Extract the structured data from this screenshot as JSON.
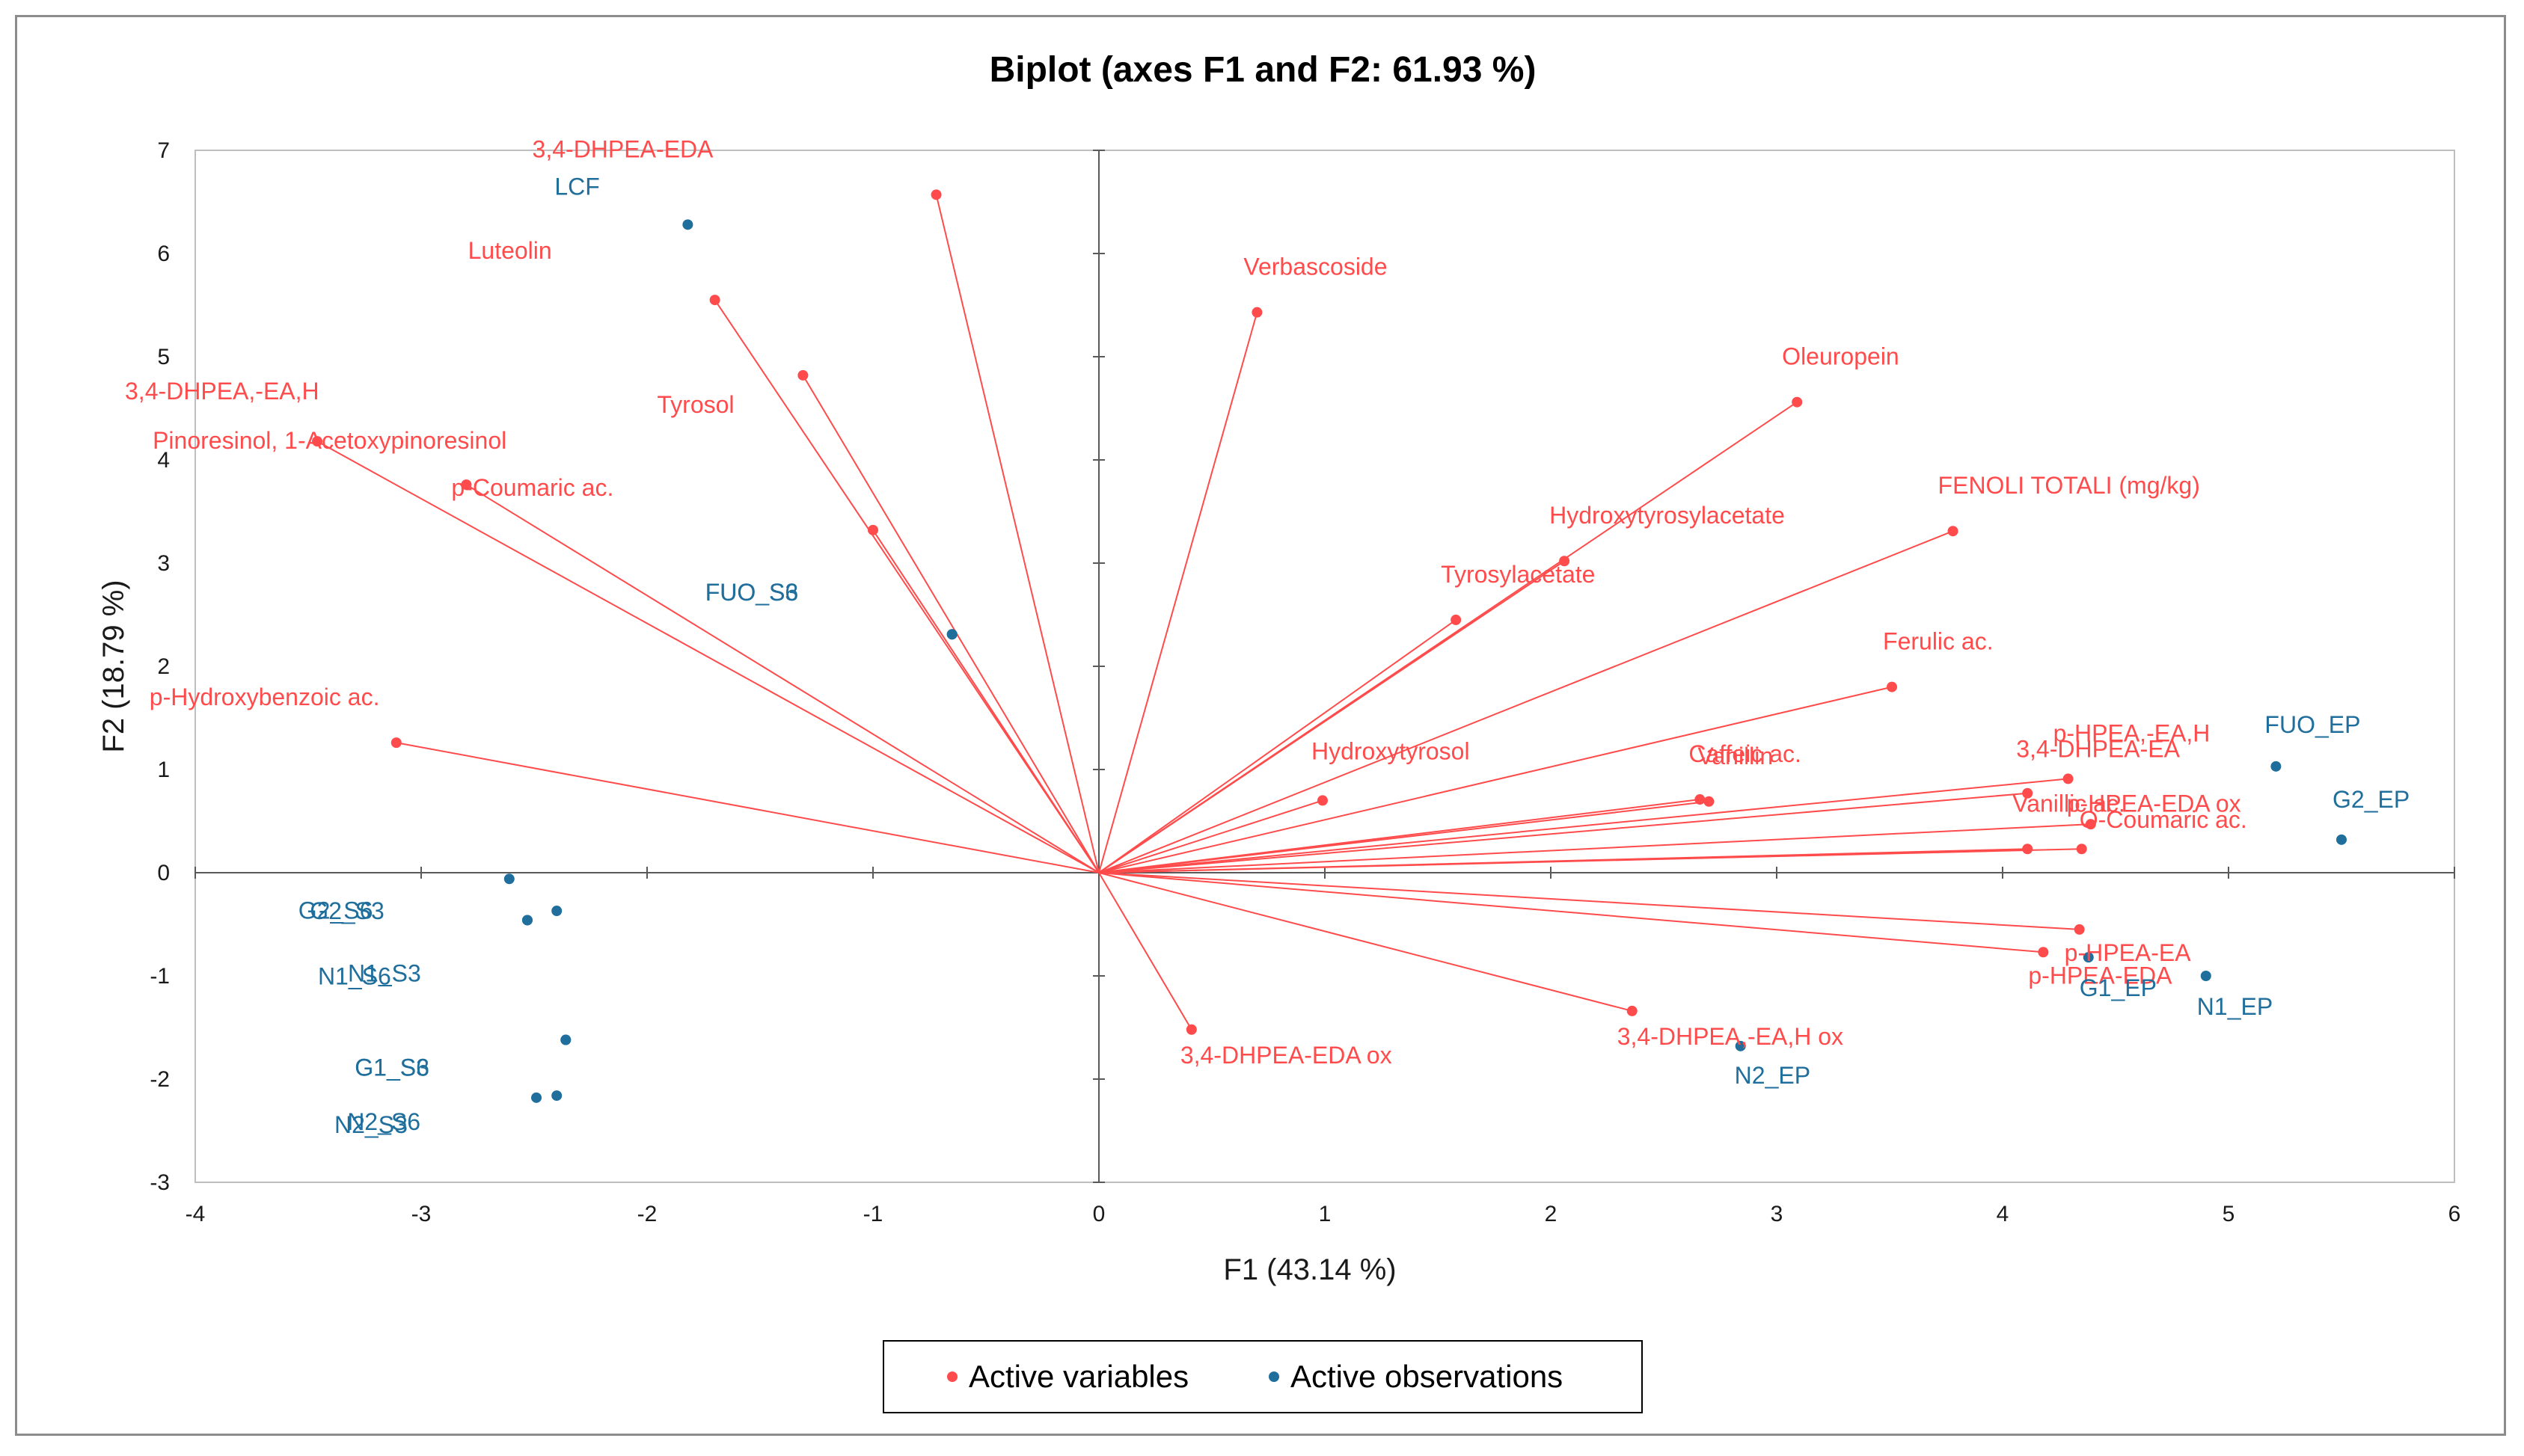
{
  "chart_data": {
    "type": "scatter",
    "subtype": "biplot",
    "title": "Biplot (axes F1 and F2: 61.93 %)",
    "xlabel": "F1 (43.14 %)",
    "ylabel": "F2 (18.79 %)",
    "xlim": [
      -4,
      6
    ],
    "ylim": [
      -3,
      7
    ],
    "xticks": [
      -4,
      -3,
      -2,
      -1,
      0,
      1,
      2,
      3,
      4,
      5,
      6
    ],
    "yticks": [
      -3,
      -2,
      -1,
      0,
      1,
      2,
      3,
      4,
      5,
      6,
      7
    ],
    "grid": false,
    "colors": {
      "variables": "#ff4b4b",
      "observations": "#1f6e9c",
      "axis": "#595959"
    },
    "legend": {
      "position": "bottom-center",
      "entries": [
        {
          "name": "Active variables",
          "color": "#ff4b4b"
        },
        {
          "name": "Active observations",
          "color": "#1f6e9c"
        }
      ]
    },
    "variables": [
      {
        "name": "3,4-DHPEA-EDA",
        "x": -0.72,
        "y": 6.57
      },
      {
        "name": "Luteolin",
        "x": -1.7,
        "y": 5.55
      },
      {
        "name": "Tyrosol",
        "x": -1.31,
        "y": 4.82
      },
      {
        "name": "3,4-DHPEA,-EA,H",
        "x": -1.0,
        "y": 3.32
      },
      {
        "name": "Pinoresinol, 1-Acetoxypinoresinol",
        "x": -3.46,
        "y": 4.18
      },
      {
        "name": "p-Coumaric ac.",
        "x": -2.8,
        "y": 3.76
      },
      {
        "name": "p-Hydroxybenzoic ac.",
        "x": -3.11,
        "y": 1.26
      },
      {
        "name": "Verbascoside",
        "x": 0.7,
        "y": 5.43
      },
      {
        "name": "Oleuropein",
        "x": 3.09,
        "y": 4.56
      },
      {
        "name": "Hydroxytyrosylacetate",
        "x": 2.06,
        "y": 3.02
      },
      {
        "name": "Tyrosylacetate",
        "x": 1.58,
        "y": 2.45
      },
      {
        "name": "FENOLI TOTALI (mg/kg)",
        "x": 3.78,
        "y": 3.31
      },
      {
        "name": "Ferulic ac.",
        "x": 3.51,
        "y": 1.8
      },
      {
        "name": "Hydroxytyrosol",
        "x": 0.99,
        "y": 0.7
      },
      {
        "name": "Caffeic ac.",
        "x": 2.66,
        "y": 0.71
      },
      {
        "name": "Vanillin",
        "x": 2.7,
        "y": 0.69
      },
      {
        "name": "p-HPEA,-EA,H",
        "x": 4.29,
        "y": 0.91
      },
      {
        "name": "3,4-DHPEA-EA",
        "x": 4.11,
        "y": 0.77
      },
      {
        "name": "O-Coumaric ac.",
        "x": 4.39,
        "y": 0.47
      },
      {
        "name": "Vanillic ac.",
        "x": 4.11,
        "y": 0.23
      },
      {
        "name": "p-HPEA-EDA ox",
        "x": 4.35,
        "y": 0.23
      },
      {
        "name": "p-HPEA-EA",
        "x": 4.34,
        "y": -0.55
      },
      {
        "name": "p-HPEA-EDA",
        "x": 4.18,
        "y": -0.77
      },
      {
        "name": "3,4-DHPEA,-EA,H ox",
        "x": 2.36,
        "y": -1.34
      },
      {
        "name": "3,4-DHPEA-EDA ox",
        "x": 0.41,
        "y": -1.52
      }
    ],
    "observations": [
      {
        "name": "LCF",
        "x": -1.82,
        "y": 6.28
      },
      {
        "name": "FUO_S6",
        "x": -0.65,
        "y": 2.31
      },
      {
        "name": "FUO_S3",
        "x": -0.65,
        "y": 2.31
      },
      {
        "name": "G2_S6",
        "x": -2.61,
        "y": -0.06
      },
      {
        "name": "G2_S3",
        "x": -2.4,
        "y": -0.37
      },
      {
        "name": "N1_S6",
        "x": -2.53,
        "y": -0.46
      },
      {
        "name": "N1_S3",
        "x": -2.53,
        "y": -0.46
      },
      {
        "name": "G1_S6",
        "x": -2.36,
        "y": -1.62
      },
      {
        "name": "G1_S3",
        "x": -2.36,
        "y": -1.62
      },
      {
        "name": "N2_S6",
        "x": -2.4,
        "y": -2.16
      },
      {
        "name": "N2_S3",
        "x": -2.49,
        "y": -2.18
      },
      {
        "name": "FUO_EP",
        "x": 5.21,
        "y": 1.03
      },
      {
        "name": "G2_EP",
        "x": 5.5,
        "y": 0.32
      },
      {
        "name": "G1_EP",
        "x": 4.38,
        "y": -0.82
      },
      {
        "name": "N1_EP",
        "x": 4.9,
        "y": -1.0
      },
      {
        "name": "N2_EP",
        "x": 2.84,
        "y": -1.68
      }
    ]
  }
}
